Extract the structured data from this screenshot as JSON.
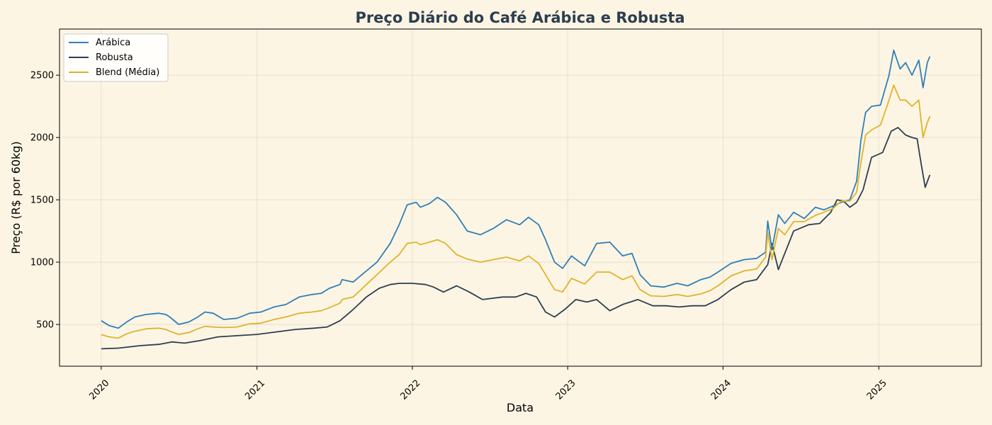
{
  "chart_data": {
    "type": "line",
    "title": "Preço Diário do Café Arábica e Robusta",
    "xlabel": "Data",
    "ylabel": "Preço (R$ por 60kg)",
    "x_axis": "date",
    "xlim": [
      "2019-09-25",
      "2025-08-30"
    ],
    "ylim": [
      165,
      2870
    ],
    "x_ticks": [
      "2020",
      "2021",
      "2022",
      "2023",
      "2024",
      "2025"
    ],
    "x_tick_dates": [
      "2020-01-01",
      "2021-01-01",
      "2022-01-01",
      "2023-01-01",
      "2024-01-01",
      "2025-01-01"
    ],
    "y_ticks": [
      500,
      1000,
      1500,
      2000,
      2500
    ],
    "grid": true,
    "legend_position": "top-left",
    "background": "#fdf5e3",
    "title_color": "#2c3e50",
    "series": [
      {
        "name": "Arábica",
        "color": "#2f7fb8",
        "x": [
          "2020-01-01",
          "2020-01-20",
          "2020-02-10",
          "2020-03-01",
          "2020-03-20",
          "2020-04-15",
          "2020-05-15",
          "2020-06-01",
          "2020-06-10",
          "2020-07-01",
          "2020-07-25",
          "2020-08-15",
          "2020-09-01",
          "2020-09-20",
          "2020-10-15",
          "2020-11-15",
          "2020-12-15",
          "2021-01-10",
          "2021-02-10",
          "2021-03-10",
          "2021-04-10",
          "2021-05-10",
          "2021-06-01",
          "2021-06-20",
          "2021-07-15",
          "2021-07-20",
          "2021-08-15",
          "2021-09-15",
          "2021-10-10",
          "2021-11-10",
          "2021-12-01",
          "2021-12-20",
          "2022-01-10",
          "2022-01-20",
          "2022-02-10",
          "2022-03-01",
          "2022-03-20",
          "2022-04-15",
          "2022-05-10",
          "2022-06-10",
          "2022-07-10",
          "2022-08-10",
          "2022-09-10",
          "2022-10-01",
          "2022-10-25",
          "2022-11-10",
          "2022-12-01",
          "2022-12-20",
          "2023-01-10",
          "2023-02-10",
          "2023-03-10",
          "2023-04-10",
          "2023-05-10",
          "2023-06-01",
          "2023-06-20",
          "2023-07-15",
          "2023-08-15",
          "2023-09-15",
          "2023-10-10",
          "2023-11-10",
          "2023-12-01",
          "2023-12-20",
          "2024-01-20",
          "2024-02-20",
          "2024-03-20",
          "2024-04-10",
          "2024-04-15",
          "2024-04-25",
          "2024-05-10",
          "2024-05-25",
          "2024-06-15",
          "2024-07-10",
          "2024-08-05",
          "2024-08-25",
          "2024-09-15",
          "2024-10-05",
          "2024-10-25",
          "2024-11-10",
          "2024-11-20",
          "2024-12-01",
          "2024-12-15",
          "2025-01-05",
          "2025-01-25",
          "2025-02-05",
          "2025-02-20",
          "2025-03-05",
          "2025-03-20",
          "2025-04-05",
          "2025-04-15",
          "2025-04-25",
          "2025-05-01"
        ],
        "values": [
          530,
          490,
          470,
          520,
          560,
          580,
          590,
          580,
          560,
          500,
          520,
          560,
          600,
          590,
          540,
          550,
          590,
          600,
          640,
          660,
          720,
          740,
          750,
          790,
          820,
          860,
          840,
          930,
          1000,
          1150,
          1300,
          1460,
          1480,
          1440,
          1470,
          1520,
          1480,
          1380,
          1250,
          1220,
          1270,
          1340,
          1300,
          1360,
          1300,
          1180,
          1000,
          950,
          1050,
          970,
          1150,
          1160,
          1050,
          1070,
          900,
          810,
          800,
          830,
          810,
          860,
          880,
          920,
          990,
          1020,
          1030,
          1080,
          1330,
          1100,
          1380,
          1310,
          1400,
          1350,
          1440,
          1420,
          1450,
          1480,
          1500,
          1650,
          1980,
          2200,
          2250,
          2260,
          2500,
          2700,
          2550,
          2600,
          2500,
          2620,
          2400,
          2600,
          2650
        ]
      },
      {
        "name": "Robusta",
        "color": "#2c3e50",
        "x": [
          "2020-01-01",
          "2020-02-10",
          "2020-04-01",
          "2020-05-15",
          "2020-06-15",
          "2020-07-15",
          "2020-08-20",
          "2020-10-01",
          "2020-11-15",
          "2021-01-01",
          "2021-02-15",
          "2021-04-01",
          "2021-05-15",
          "2021-06-15",
          "2021-07-15",
          "2021-08-15",
          "2021-09-15",
          "2021-10-15",
          "2021-11-10",
          "2021-12-01",
          "2022-01-01",
          "2022-02-01",
          "2022-02-20",
          "2022-03-15",
          "2022-04-15",
          "2022-05-15",
          "2022-06-15",
          "2022-08-01",
          "2022-09-01",
          "2022-09-25",
          "2022-10-20",
          "2022-11-10",
          "2022-12-01",
          "2022-12-25",
          "2023-01-20",
          "2023-02-15",
          "2023-03-10",
          "2023-04-10",
          "2023-05-10",
          "2023-06-15",
          "2023-07-20",
          "2023-08-20",
          "2023-09-20",
          "2023-10-20",
          "2023-11-20",
          "2023-12-20",
          "2024-01-20",
          "2024-02-20",
          "2024-03-20",
          "2024-04-15",
          "2024-04-25",
          "2024-05-10",
          "2024-06-15",
          "2024-07-20",
          "2024-08-15",
          "2024-09-10",
          "2024-09-25",
          "2024-10-10",
          "2024-10-25",
          "2024-11-10",
          "2024-11-25",
          "2024-12-15",
          "2025-01-10",
          "2025-01-30",
          "2025-02-15",
          "2025-03-05",
          "2025-03-20",
          "2025-04-01",
          "2025-04-10",
          "2025-04-20",
          "2025-05-01"
        ],
        "values": [
          305,
          310,
          330,
          340,
          360,
          350,
          370,
          400,
          410,
          420,
          440,
          460,
          470,
          480,
          530,
          620,
          720,
          790,
          820,
          830,
          830,
          820,
          800,
          760,
          810,
          760,
          700,
          720,
          720,
          750,
          720,
          600,
          560,
          620,
          700,
          680,
          700,
          610,
          660,
          700,
          650,
          650,
          640,
          650,
          650,
          700,
          780,
          840,
          860,
          980,
          1150,
          940,
          1250,
          1300,
          1310,
          1400,
          1500,
          1490,
          1440,
          1480,
          1580,
          1840,
          1880,
          2050,
          2080,
          2020,
          2000,
          1990,
          1800,
          1600,
          1700
        ]
      },
      {
        "name": "Blend (Média)",
        "color": "#dfb22e",
        "x": [
          "2020-01-01",
          "2020-01-20",
          "2020-02-10",
          "2020-03-01",
          "2020-03-20",
          "2020-04-15",
          "2020-05-15",
          "2020-06-01",
          "2020-06-10",
          "2020-07-01",
          "2020-07-25",
          "2020-08-15",
          "2020-09-01",
          "2020-09-20",
          "2020-10-15",
          "2020-11-15",
          "2020-12-15",
          "2021-01-10",
          "2021-02-10",
          "2021-03-10",
          "2021-04-10",
          "2021-05-10",
          "2021-06-01",
          "2021-06-20",
          "2021-07-15",
          "2021-07-20",
          "2021-08-15",
          "2021-09-15",
          "2021-10-10",
          "2021-11-10",
          "2021-12-01",
          "2021-12-20",
          "2022-01-10",
          "2022-01-20",
          "2022-02-10",
          "2022-03-01",
          "2022-03-20",
          "2022-04-15",
          "2022-05-10",
          "2022-06-10",
          "2022-07-10",
          "2022-08-10",
          "2022-09-10",
          "2022-10-01",
          "2022-10-25",
          "2022-11-10",
          "2022-12-01",
          "2022-12-20",
          "2023-01-10",
          "2023-02-10",
          "2023-03-10",
          "2023-04-10",
          "2023-05-10",
          "2023-06-01",
          "2023-06-20",
          "2023-07-15",
          "2023-08-15",
          "2023-09-15",
          "2023-10-10",
          "2023-11-10",
          "2023-12-01",
          "2023-12-20",
          "2024-01-20",
          "2024-02-20",
          "2024-03-20",
          "2024-04-10",
          "2024-04-15",
          "2024-04-25",
          "2024-05-10",
          "2024-05-25",
          "2024-06-15",
          "2024-07-10",
          "2024-08-05",
          "2024-08-25",
          "2024-09-15",
          "2024-10-05",
          "2024-10-25",
          "2024-11-10",
          "2024-11-20",
          "2024-12-01",
          "2024-12-15",
          "2025-01-05",
          "2025-01-25",
          "2025-02-05",
          "2025-02-20",
          "2025-03-05",
          "2025-03-20",
          "2025-04-05",
          "2025-04-15",
          "2025-04-25",
          "2025-05-01"
        ],
        "values": [
          418,
          400,
          390,
          425,
          445,
          465,
          470,
          460,
          445,
          420,
          435,
          465,
          485,
          480,
          475,
          480,
          505,
          510,
          540,
          560,
          590,
          600,
          610,
          635,
          670,
          700,
          720,
          820,
          900,
          1000,
          1060,
          1150,
          1160,
          1140,
          1160,
          1180,
          1150,
          1060,
          1025,
          1000,
          1020,
          1040,
          1010,
          1050,
          990,
          900,
          780,
          760,
          870,
          825,
          920,
          920,
          860,
          890,
          780,
          730,
          725,
          740,
          725,
          745,
          770,
          810,
          890,
          930,
          945,
          1040,
          1240,
          1020,
          1270,
          1220,
          1325,
          1325,
          1375,
          1400,
          1430,
          1490,
          1490,
          1560,
          1800,
          2020,
          2060,
          2100,
          2300,
          2420,
          2300,
          2300,
          2250,
          2300,
          2000,
          2120,
          2170
        ]
      }
    ]
  }
}
